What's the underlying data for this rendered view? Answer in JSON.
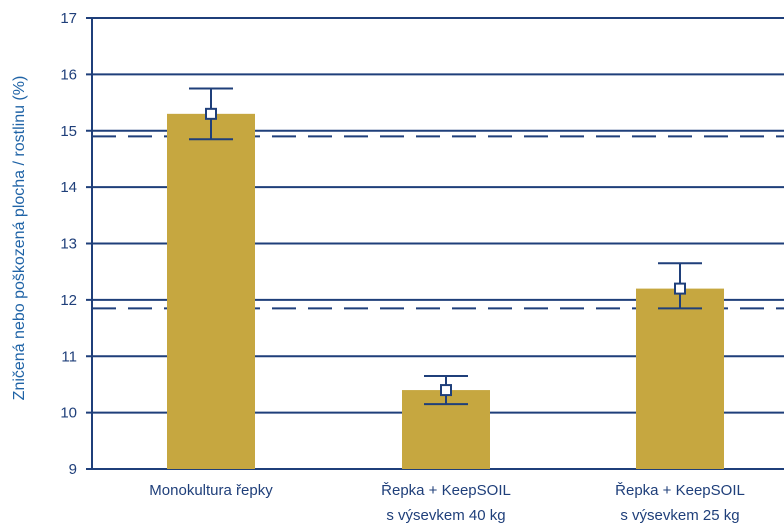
{
  "chart_data": {
    "type": "bar",
    "ylabel": "Zničená nebo poškozená plocha / rostlinu (%)",
    "ylim": [
      9,
      17
    ],
    "yticks": [
      9,
      10,
      11,
      12,
      13,
      14,
      15,
      16,
      17
    ],
    "grid": true,
    "categories": [
      [
        "Monokultura řepky"
      ],
      [
        "Řepka + KeepSOIL",
        "s výsevkem 40 kg"
      ],
      [
        "Řepka + KeepSOIL",
        "s výsevkem 25 kg"
      ]
    ],
    "values": [
      15.3,
      10.4,
      12.2
    ],
    "markers": [
      15.3,
      10.4,
      12.2
    ],
    "error_low": [
      14.85,
      10.15,
      11.85
    ],
    "error_high": [
      15.75,
      10.65,
      12.65
    ],
    "reference_lines": [
      14.9,
      11.85
    ],
    "colors": {
      "bar": "#c6a740",
      "axis": "#1f3f7a",
      "grid": "#1f3f7a",
      "error": "#1f3f7a",
      "marker_fill": "#ffffff",
      "axis_title": "#1f63a6"
    }
  }
}
